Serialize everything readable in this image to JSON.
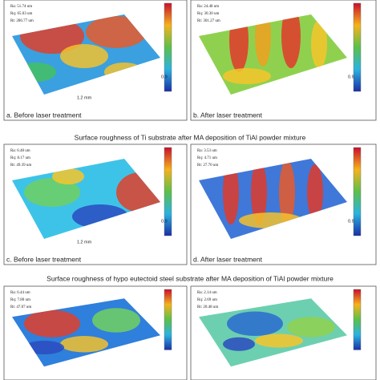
{
  "section_titles": [
    "Surface roughness of Ti substrate after MA deposition of TiAl powder mixture",
    "Surface roughness of hypo eutectoid steel substrate after MA deposition of TiAl powder mixture"
  ],
  "panels": [
    {
      "stats": [
        "Ra: 51.74 um",
        "Rq: 65.03 um",
        "Rt: 286.77 um"
      ],
      "x_label": "1.2 mm",
      "y_label": "0.9",
      "caption": "a. Before laser treatment"
    },
    {
      "stats": [
        "Ra: 24.48 um",
        "Rq: 30.30 um",
        "Rt: 301.27 um"
      ],
      "y_label": "0.9",
      "caption": "b. After laser treatment"
    },
    {
      "stats": [
        "Ra: 6.48 um",
        "Rq: 8.17 um",
        "Rt: 49.39 um"
      ],
      "x_label": "1.2 mm",
      "y_label": "0.9",
      "caption": "c. Before laser treatment"
    },
    {
      "stats": [
        "Ra: 3.53 um",
        "Rq: 4.71 um",
        "Rt: 27.70 um"
      ],
      "y_label": "0.9",
      "caption": "d. After laser treatment"
    },
    {
      "stats": [
        "Ra: 6.44 um",
        "Rq: 7.80 um",
        "Rt: 47.07 um"
      ]
    },
    {
      "stats": [
        "Ra: 2.14 um",
        "Rq: 2.69 um",
        "Rt: 20.48 um"
      ]
    }
  ]
}
